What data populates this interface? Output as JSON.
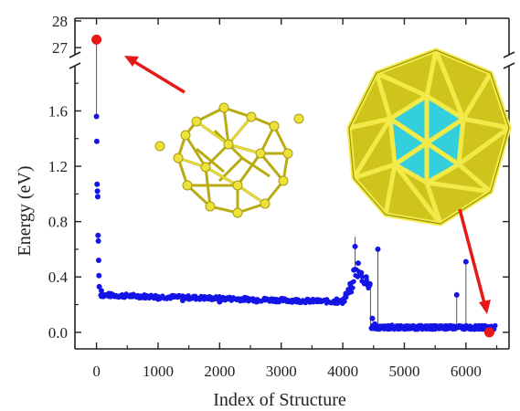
{
  "chart_data": {
    "type": "scatter",
    "title": "",
    "xlabel": "Index of Structure",
    "ylabel": "Energy (eV)",
    "xlim": [
      -350,
      6700
    ],
    "ylim": [
      -0.12,
      1.9
    ],
    "break_ylim": [
      26.8,
      28.1
    ],
    "y_axis_break": true,
    "grid": false,
    "legend": "none",
    "x_ticks": [
      "0",
      "1000",
      "2000",
      "3000",
      "4000",
      "5000",
      "6000"
    ],
    "x_tick_values": [
      0,
      1000,
      2000,
      3000,
      4000,
      5000,
      6000
    ],
    "y_ticks": [
      "0.0",
      "0.4",
      "0.8",
      "1.2",
      "1.6"
    ],
    "y_tick_values": [
      0.0,
      0.4,
      0.8,
      1.2,
      1.6
    ],
    "y_break_ticks": [
      "27",
      "28"
    ],
    "y_break_tick_values": [
      27,
      28
    ],
    "colors": {
      "points": "#1414e6",
      "highlight": "#e61919",
      "arrow": "#e61919",
      "axis": "#222222",
      "gold": "#e6dc28",
      "cyan": "#2ed3e0"
    },
    "series": [
      {
        "values": [
          {
            "x": 0,
            "y": 1.56
          },
          {
            "x": 5,
            "y": 1.38
          },
          {
            "x": 10,
            "y": 1.07
          },
          {
            "x": 15,
            "y": 1.02
          },
          {
            "x": 20,
            "y": 0.98
          },
          {
            "x": 25,
            "y": 0.7
          },
          {
            "x": 30,
            "y": 0.66
          },
          {
            "x": 35,
            "y": 0.52
          },
          {
            "x": 40,
            "y": 0.41
          },
          {
            "x": 45,
            "y": 0.33
          },
          {
            "x": 80,
            "y": 0.3
          },
          {
            "x": 200,
            "y": 0.28
          },
          {
            "x": 400,
            "y": 0.26
          },
          {
            "x": 600,
            "y": 0.26
          },
          {
            "x": 800,
            "y": 0.25
          },
          {
            "x": 1000,
            "y": 0.24
          },
          {
            "x": 1400,
            "y": 0.23
          },
          {
            "x": 2000,
            "y": 0.22
          },
          {
            "x": 2600,
            "y": 0.22
          },
          {
            "x": 3200,
            "y": 0.23
          },
          {
            "x": 3600,
            "y": 0.23
          },
          {
            "x": 3900,
            "y": 0.24
          },
          {
            "x": 4050,
            "y": 0.28
          },
          {
            "x": 4120,
            "y": 0.35
          },
          {
            "x": 4180,
            "y": 0.45
          },
          {
            "x": 4200,
            "y": 0.62
          },
          {
            "x": 4250,
            "y": 0.5
          },
          {
            "x": 4300,
            "y": 0.43
          },
          {
            "x": 4380,
            "y": 0.4
          },
          {
            "x": 4440,
            "y": 0.35
          },
          {
            "x": 4480,
            "y": 0.1
          },
          {
            "x": 4520,
            "y": 0.06
          },
          {
            "x": 4570,
            "y": 0.6
          },
          {
            "x": 4800,
            "y": 0.05
          },
          {
            "x": 5200,
            "y": 0.04
          },
          {
            "x": 5600,
            "y": 0.04
          },
          {
            "x": 5850,
            "y": 0.27
          },
          {
            "x": 6000,
            "y": 0.51
          },
          {
            "x": 6300,
            "y": 0.03
          },
          {
            "x": 6450,
            "y": 0.03
          }
        ]
      }
    ],
    "highlighted_points": [
      {
        "x": 0,
        "y": 27.3
      },
      {
        "x": 6380,
        "y": 0.0
      }
    ]
  }
}
